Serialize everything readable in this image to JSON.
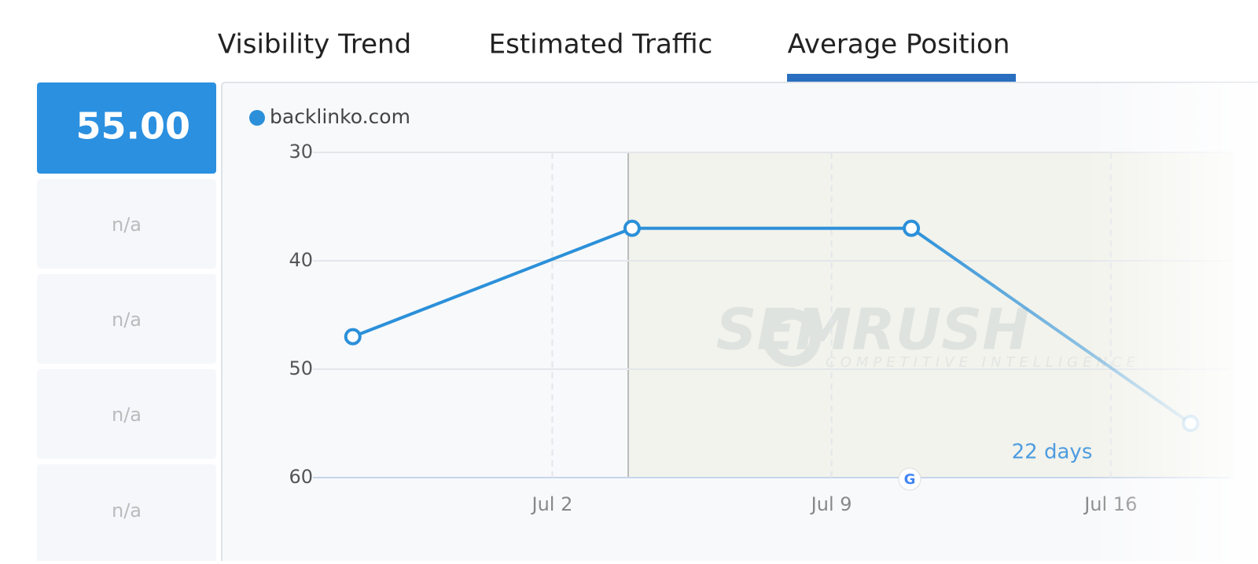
{
  "tabs": [
    "Visibility Trend",
    "Estimated Traffic",
    "Average Position"
  ],
  "cards": [
    "55.00",
    "n/a",
    "n/a",
    "n/a",
    "n/a"
  ],
  "watermark": {
    "brand": "SEMRUSH",
    "tagline": "COMPETITIVE INTELLIGENCE"
  },
  "chart_data": {
    "type": "line",
    "x": [
      "Jun 27",
      "Jul 4",
      "Jul 11",
      "Jul 18"
    ],
    "series": [
      {
        "name": "backlinko.com",
        "color": "#2b90d9",
        "values": [
          47,
          37,
          37,
          55
        ]
      }
    ],
    "xlim": [
      "Jun 26",
      "Jul 19"
    ],
    "xticks": [
      "Jul 2",
      "Jul 9",
      "Jul 16"
    ],
    "ylim": [
      60,
      30
    ],
    "yticks": [
      30,
      40,
      50,
      60
    ],
    "grid": true,
    "annotations": [
      "22 days"
    ]
  }
}
